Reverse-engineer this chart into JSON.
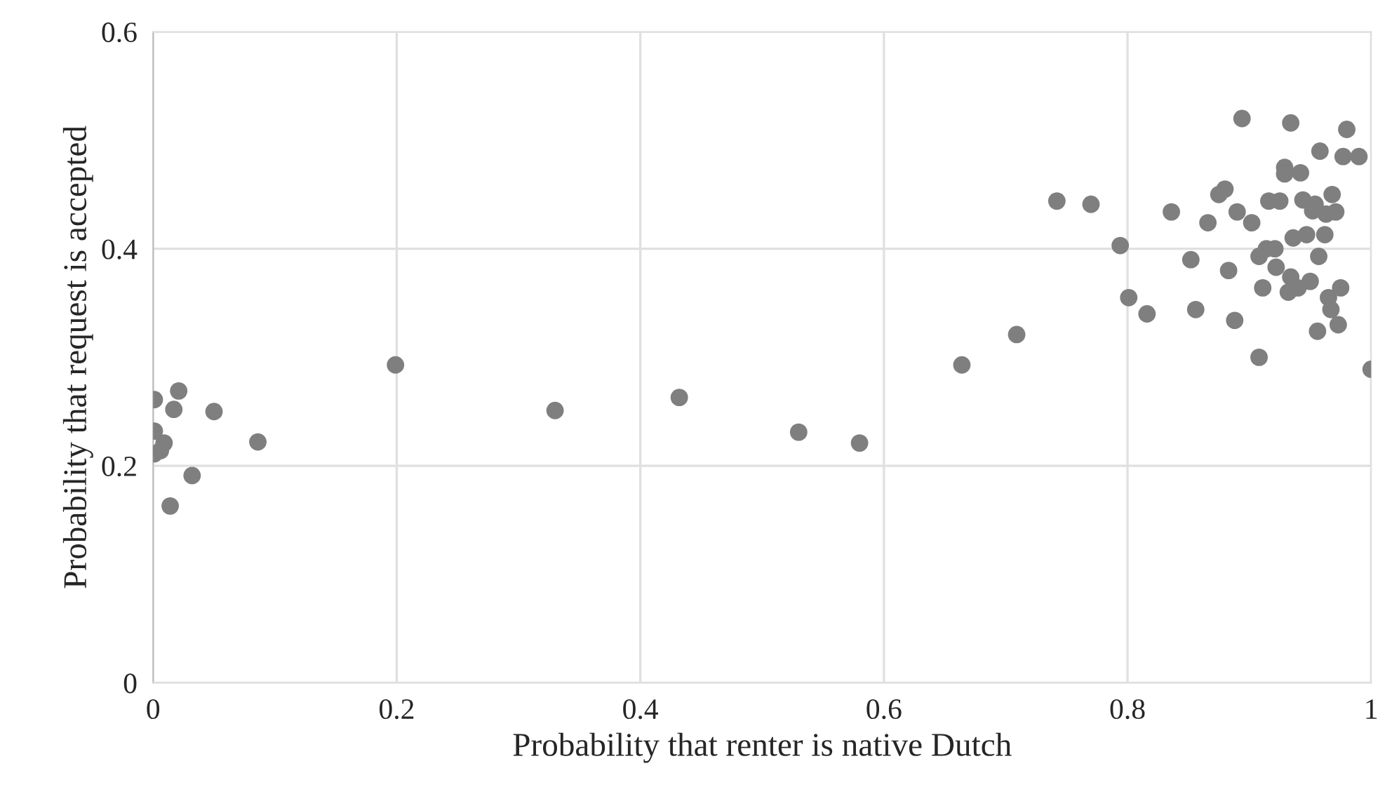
{
  "chart_data": {
    "type": "scatter",
    "xlabel": "Probability that renter is native Dutch",
    "ylabel": "Probability that request is accepted",
    "x": [
      0.894,
      0.934,
      0.98,
      0.958,
      0.977,
      0.99,
      0.929,
      0.929,
      0.942,
      0.742,
      0.77,
      0.88,
      0.875,
      0.916,
      0.925,
      0.944,
      0.954,
      0.968,
      0.952,
      0.963,
      0.971,
      0.836,
      0.866,
      0.89,
      0.902,
      0.794,
      0.936,
      0.947,
      0.962,
      0.914,
      0.921,
      0.908,
      0.957,
      0.852,
      0.883,
      0.922,
      0.934,
      0.95,
      0.975,
      0.911,
      0.932,
      0.94,
      0.965,
      0.967,
      0.801,
      0.816,
      0.856,
      0.888,
      0.973,
      0.956,
      0.709,
      0.908,
      1.0,
      0.199,
      0.001,
      0.021,
      0.017,
      0.05,
      0.001,
      0.009,
      0.001,
      0.006,
      0.086,
      0.032,
      0.014,
      0.33,
      0.432,
      0.53,
      0.58,
      0.664
    ],
    "values": [
      0.52,
      0.516,
      0.51,
      0.49,
      0.485,
      0.485,
      0.475,
      0.469,
      0.47,
      0.444,
      0.441,
      0.455,
      0.45,
      0.444,
      0.444,
      0.445,
      0.441,
      0.45,
      0.435,
      0.432,
      0.434,
      0.434,
      0.424,
      0.434,
      0.424,
      0.403,
      0.41,
      0.413,
      0.413,
      0.4,
      0.4,
      0.393,
      0.393,
      0.39,
      0.38,
      0.383,
      0.374,
      0.37,
      0.364,
      0.364,
      0.36,
      0.364,
      0.355,
      0.344,
      0.355,
      0.34,
      0.344,
      0.334,
      0.33,
      0.324,
      0.321,
      0.3,
      0.289,
      0.293,
      0.261,
      0.269,
      0.252,
      0.25,
      0.232,
      0.221,
      0.211,
      0.214,
      0.222,
      0.191,
      0.163,
      0.251,
      0.263,
      0.231,
      0.221,
      0.293
    ],
    "color": "#7f7f7f",
    "marker": "circle",
    "xlim": [
      0,
      1
    ],
    "xticks": [
      0,
      0.2,
      0.4,
      0.6,
      0.8,
      1
    ],
    "ylim": [
      0,
      0.6
    ],
    "yticks": [
      0,
      0.2,
      0.4,
      0.6
    ],
    "grid": true
  }
}
